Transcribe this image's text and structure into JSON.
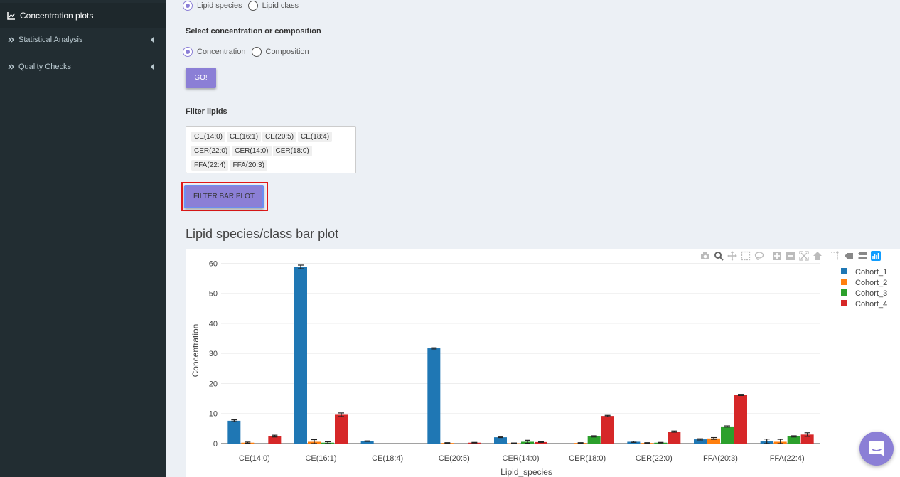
{
  "sidebar": {
    "items": [
      {
        "label": "Concentration plots",
        "icon": "line-chart-icon",
        "active": true
      },
      {
        "label": "Statistical Analysis",
        "icon": "double-chevron-right-icon"
      },
      {
        "label": "Quality Checks",
        "icon": "double-chevron-right-icon"
      }
    ]
  },
  "species_select": {
    "options": [
      {
        "label": "Lipid species",
        "checked": true
      },
      {
        "label": "Lipid class",
        "checked": false
      }
    ]
  },
  "conc_select": {
    "title": "Select concentration or composition",
    "options": [
      {
        "label": "Concentration",
        "checked": true
      },
      {
        "label": "Composition",
        "checked": false
      }
    ]
  },
  "go_label": "GO!",
  "filter": {
    "title": "Filter lipids",
    "chips": [
      "CE(14:0)",
      "CE(16:1)",
      "CE(20:5)",
      "CE(18:4)",
      "CER(22:0)",
      "CER(14:0)",
      "CER(18:0)",
      "FFA(22:4)",
      "FFA(20:3)"
    ],
    "button_label": "FILTER BAR PLOT"
  },
  "plot_title": "Lipid species/class bar plot",
  "colors": {
    "accent": "#8b7fd6",
    "sidebar_bg": "#222d32",
    "highlight": "#e01818"
  },
  "chart_data": {
    "type": "bar",
    "xlabel": "Lipid_species",
    "ylabel": "Concentration",
    "ylim": [
      0,
      62
    ],
    "yticks": [
      0,
      10,
      20,
      30,
      40,
      50,
      60
    ],
    "legend": "top-right",
    "grid": true,
    "categories": [
      "CE(14:0)",
      "CE(16:1)",
      "CE(18:4)",
      "CE(20:5)",
      "CER(14:0)",
      "CER(18:0)",
      "CER(22:0)",
      "FFA(20:3)",
      "FFA(22:4)"
    ],
    "series": [
      {
        "name": "Cohort_1",
        "color": "#1f77b4",
        "values": [
          7.6,
          58.8,
          0.8,
          31.7,
          2.1,
          0,
          0.6,
          1.4,
          0.7
        ],
        "errors": [
          0.3,
          0.6,
          0.1,
          0.2,
          0.1,
          0,
          0.2,
          0.2,
          0.8
        ]
      },
      {
        "name": "Cohort_2",
        "color": "#ff7f0e",
        "values": [
          0.3,
          0.6,
          0,
          0.2,
          0.1,
          0.2,
          0.2,
          1.7,
          0.6
        ],
        "errors": [
          0.2,
          0.7,
          0,
          0.1,
          0.1,
          0.1,
          0.1,
          0.3,
          0.8
        ]
      },
      {
        "name": "Cohort_3",
        "color": "#2ca02c",
        "values": [
          0,
          0.3,
          0,
          0,
          0.6,
          2.4,
          0.3,
          5.7,
          2.4
        ],
        "errors": [
          0,
          0.3,
          0,
          0,
          0.5,
          0.2,
          0.1,
          0.2,
          0.2
        ]
      },
      {
        "name": "Cohort_4",
        "color": "#d62728",
        "values": [
          2.5,
          9.6,
          0,
          0.3,
          0.5,
          9.2,
          4.0,
          16.2,
          3.0
        ],
        "errors": [
          0.3,
          0.6,
          0,
          0.1,
          0.1,
          0.2,
          0.2,
          0.2,
          0.6
        ]
      }
    ]
  }
}
